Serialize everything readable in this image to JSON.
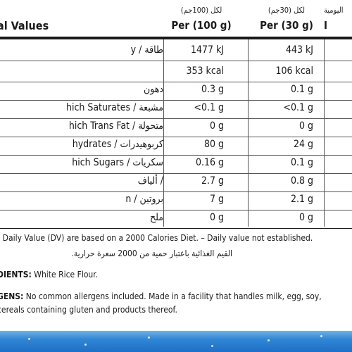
{
  "header": {
    "title": "al Values",
    "col1_ar": "لكل (100جم)",
    "col1_en": "Per (100 g)",
    "col2_ar": "لكل (30جم)",
    "col2_en": "Per (30 g)",
    "col3_ar": "اليومية",
    "col3_en": "I"
  },
  "rows": [
    {
      "label": "y / طاقة",
      "v1": "1477 kJ",
      "v2": "443 kJ"
    },
    {
      "label": "",
      "v1": "353 kcal",
      "v2": "106 kcal"
    },
    {
      "label": "دهون",
      "v1": "0.3 g",
      "v2": "0.1 g"
    },
    {
      "label": "hich Saturates / مشبعة",
      "v1": "<0.1 g",
      "v2": "<0.1 g"
    },
    {
      "label": "hich Trans Fat / متحولة",
      "v1": "0 g",
      "v2": "0 g"
    },
    {
      "label": "hydrates / كربوهيدرات",
      "v1": "80 g",
      "v2": "24 g"
    },
    {
      "label": "hich Sugars / سكريات",
      "v1": "0.16 g",
      "v2": "0.1 g"
    },
    {
      "label": "ألياف /",
      "v1": "2.7 g",
      "v2": "0.8 g"
    },
    {
      "label": "n / بروتين",
      "v1": "7 g",
      "v2": "2.1 g"
    },
    {
      "label": "ملح",
      "v1": "0 g",
      "v2": "0 g"
    }
  ],
  "footnote_en": "t Daily Value (DV) are based on a 2000 Calories Diet.  – Daily value not established.",
  "footnote_ar": "القيم الغذائية باعتبار حمية من 2000 سعرة حرارية.",
  "ingredients_label": "DIENTS:",
  "ingredients_text": " White Rice Flour.",
  "allergens_label": "GENS:",
  "allergens_text": " No common allergens included. Made in a facility that handles milk, egg, soy,",
  "allergens_text2": "cereals containing gluten and products thereof."
}
